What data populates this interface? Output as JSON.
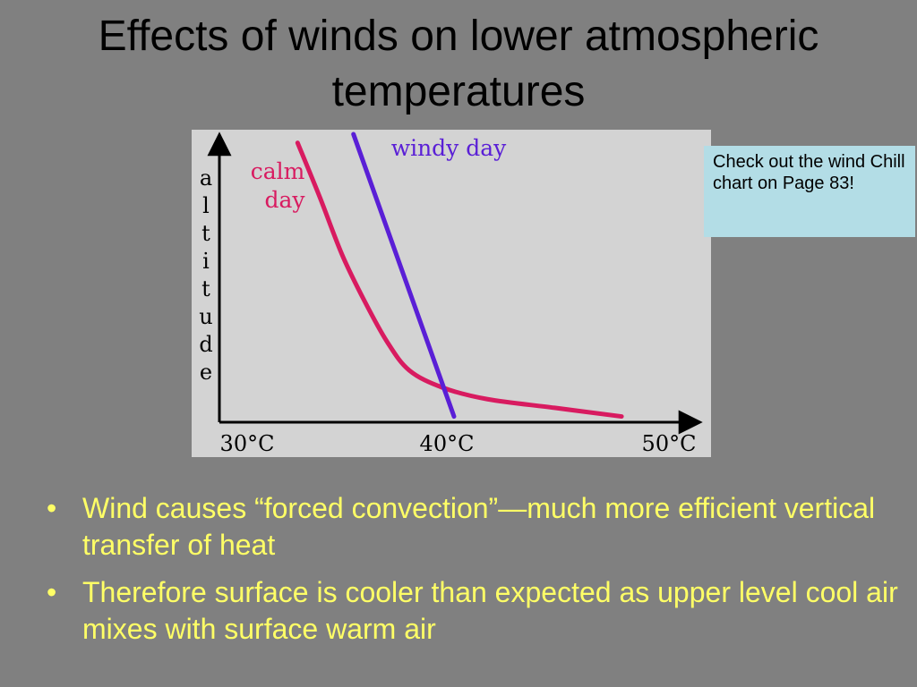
{
  "slide": {
    "title_line1": "Effects of winds on lower atmospheric",
    "title_line2": "temperatures"
  },
  "callout": {
    "text": "Check out the wind Chill chart on Page 83!"
  },
  "bullets": [
    {
      "marker": "•",
      "text": "Wind causes “forced convection”—much more efficient vertical transfer of heat"
    },
    {
      "marker": "•",
      "text": "Therefore surface is cooler than expected as upper level cool air mixes with surface warm air"
    }
  ],
  "chart_data": {
    "type": "line",
    "title": "",
    "xlabel": "",
    "ylabel": "altitude",
    "x_tick_labels": [
      "30°C",
      "40°C",
      "50°C"
    ],
    "x_ticks": [
      30,
      40,
      50
    ],
    "xlim": [
      30,
      50
    ],
    "ylim": [
      0,
      1
    ],
    "grid": false,
    "series": [
      {
        "name_line1": "calm",
        "name_line2": "day",
        "color": "#d81b60",
        "points": [
          [
            33.5,
            0.97
          ],
          [
            34.5,
            0.78
          ],
          [
            35.5,
            0.58
          ],
          [
            36.5,
            0.42
          ],
          [
            37.5,
            0.28
          ],
          [
            38.5,
            0.18
          ],
          [
            40.0,
            0.12
          ],
          [
            42.0,
            0.08
          ],
          [
            45.0,
            0.05
          ],
          [
            48.0,
            0.02
          ]
        ]
      },
      {
        "name_line1": "windy day",
        "name_line2": "",
        "color": "#5a1fd6",
        "points": [
          [
            36.0,
            1.0
          ],
          [
            40.5,
            0.02
          ]
        ]
      }
    ]
  }
}
